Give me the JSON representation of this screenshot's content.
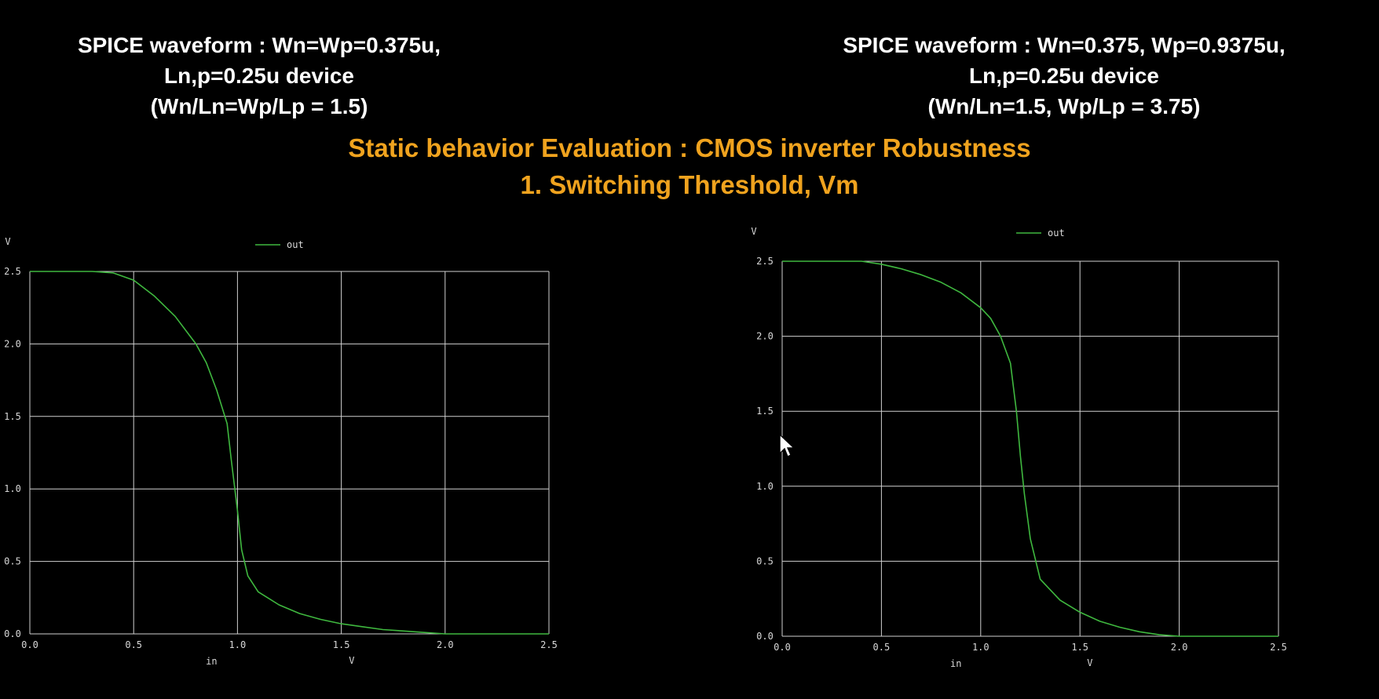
{
  "captions": {
    "left": [
      "SPICE waveform : Wn=Wp=0.375u,",
      "Ln,p=0.25u device",
      "(Wn/Ln=Wp/Lp = 1.5)"
    ],
    "right": [
      "SPICE waveform : Wn=0.375, Wp=0.9375u,",
      "Ln,p=0.25u device",
      "(Wn/Ln=1.5, Wp/Lp = 3.75)"
    ]
  },
  "title": {
    "main": "Static behavior Evaluation : CMOS inverter Robustness",
    "sub": "1. Switching Threshold, Vm"
  },
  "colors": {
    "caption": "#ffffff",
    "title": "#f0a31e",
    "trace": "#3fb83f",
    "grid": "#d0d0d0"
  },
  "chart_data": [
    {
      "type": "line",
      "ylabel": "V",
      "xlabel": "in",
      "xunit": "V",
      "xlim": [
        0,
        2.5
      ],
      "ylim": [
        0,
        2.5
      ],
      "xticks": [
        "0.0",
        "0.5",
        "1.0",
        "1.5",
        "2.0",
        "2.5"
      ],
      "yticks": [
        "0.0",
        "0.5",
        "1.0",
        "1.5",
        "2.0",
        "2.5"
      ],
      "grid": true,
      "legend": "top-center",
      "series": [
        {
          "name": "out",
          "x": [
            0.0,
            0.3,
            0.4,
            0.5,
            0.6,
            0.7,
            0.8,
            0.85,
            0.9,
            0.95,
            0.97,
            1.0,
            1.02,
            1.05,
            1.1,
            1.2,
            1.3,
            1.4,
            1.5,
            1.6,
            1.7,
            1.8,
            1.9,
            2.0,
            2.5
          ],
          "y": [
            2.5,
            2.5,
            2.49,
            2.44,
            2.33,
            2.19,
            2.0,
            1.87,
            1.68,
            1.45,
            1.2,
            0.85,
            0.58,
            0.4,
            0.29,
            0.2,
            0.14,
            0.1,
            0.07,
            0.05,
            0.03,
            0.02,
            0.01,
            0.0,
            0.0
          ]
        }
      ]
    },
    {
      "type": "line",
      "ylabel": "V",
      "xlabel": "in",
      "xunit": "V",
      "xlim": [
        0,
        2.5
      ],
      "ylim": [
        0,
        2.5
      ],
      "xticks": [
        "0.0",
        "0.5",
        "1.0",
        "1.5",
        "2.0",
        "2.5"
      ],
      "yticks": [
        "0.0",
        "0.5",
        "1.0",
        "1.5",
        "2.0",
        "2.5"
      ],
      "grid": true,
      "legend": "top-center",
      "series": [
        {
          "name": "out",
          "x": [
            0.0,
            0.3,
            0.4,
            0.5,
            0.6,
            0.7,
            0.8,
            0.9,
            1.0,
            1.05,
            1.1,
            1.15,
            1.18,
            1.2,
            1.22,
            1.25,
            1.3,
            1.4,
            1.5,
            1.6,
            1.7,
            1.8,
            1.9,
            2.0,
            2.5
          ],
          "y": [
            2.5,
            2.5,
            2.5,
            2.48,
            2.45,
            2.41,
            2.36,
            2.29,
            2.19,
            2.12,
            2.0,
            1.82,
            1.5,
            1.2,
            0.95,
            0.65,
            0.38,
            0.24,
            0.16,
            0.1,
            0.06,
            0.03,
            0.01,
            0.0,
            0.0
          ]
        }
      ]
    }
  ]
}
